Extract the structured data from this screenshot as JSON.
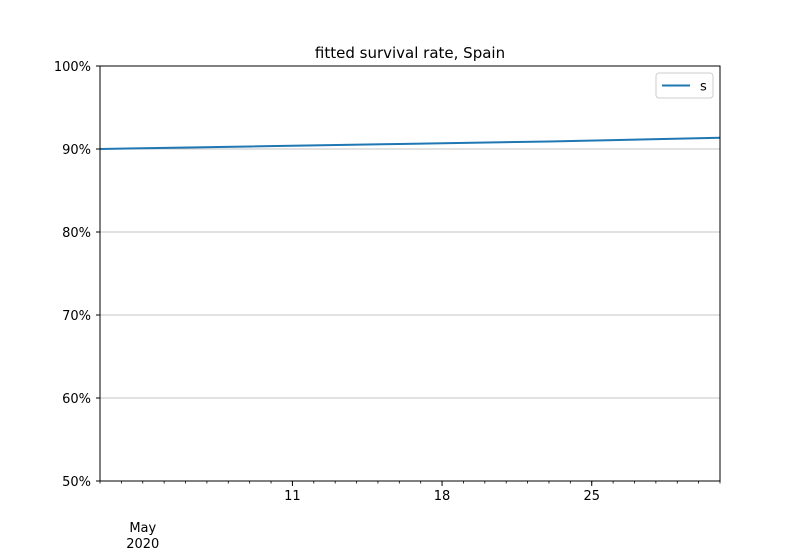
{
  "chart_data": {
    "type": "line",
    "title": "fitted survival rate, Spain",
    "xlabel": "",
    "ylabel": "",
    "x_range": [
      "2020-05-02",
      "2020-05-31"
    ],
    "ylim": [
      0.5,
      1.0
    ],
    "y_ticks": [
      0.5,
      0.6,
      0.7,
      0.8,
      0.9,
      1.0
    ],
    "y_tick_labels": [
      "50%",
      "60%",
      "70%",
      "80%",
      "90%",
      "100%"
    ],
    "x_ticks": [
      {
        "date": "2020-05-11",
        "label": "11"
      },
      {
        "date": "2020-05-18",
        "label": "18"
      },
      {
        "date": "2020-05-25",
        "label": "25"
      }
    ],
    "x_major_label": {
      "date": "2020-05-04",
      "line1": "May",
      "line2": "2020"
    },
    "grid": "horizontal",
    "legend": "top-right",
    "colors": {
      "s": "#1f77b4",
      "grid": "#b0b0b0"
    },
    "series": [
      {
        "name": "s",
        "x": [
          "2020-05-02",
          "2020-05-09",
          "2020-05-16",
          "2020-05-23",
          "2020-05-31"
        ],
        "y": [
          0.9,
          0.903,
          0.906,
          0.909,
          0.9135
        ]
      }
    ]
  }
}
